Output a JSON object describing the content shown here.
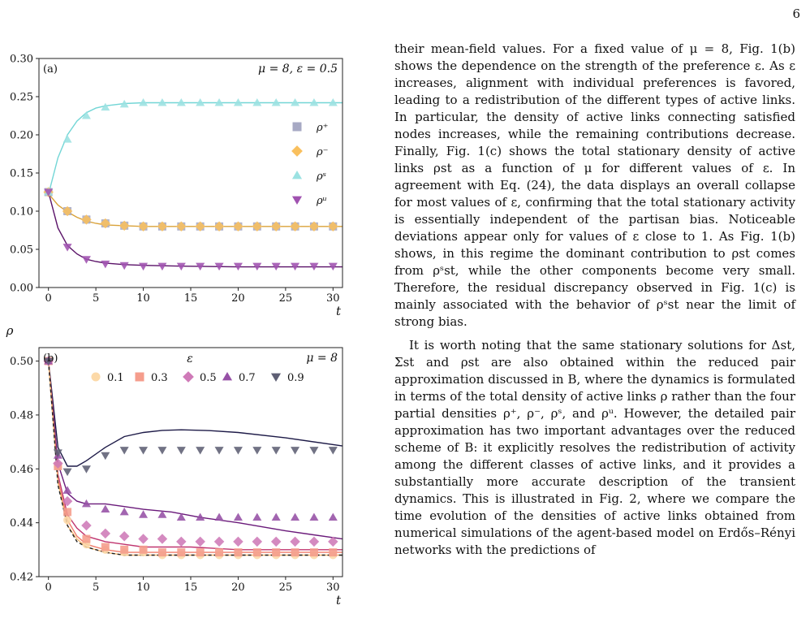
{
  "page": {
    "number": "6"
  },
  "chart_data": [
    {
      "type": "line",
      "panel_label": "(a)",
      "annotation": "μ = 8, ε = 0.5",
      "xlabel": "t",
      "ylabel": "",
      "xlim": [
        -1,
        31
      ],
      "ylim": [
        0.0,
        0.3
      ],
      "xticks": [
        0,
        5,
        10,
        15,
        20,
        25,
        30
      ],
      "yticks": [
        "0.00",
        "0.05",
        "0.10",
        "0.15",
        "0.20",
        "0.25",
        "0.30"
      ],
      "legend_position": "right",
      "grid": false,
      "series": [
        {
          "name": "ρ⁺",
          "color": "#a7a9c4",
          "marker": "square",
          "x": [
            0,
            2,
            4,
            6,
            8,
            10,
            12,
            14,
            16,
            18,
            20,
            22,
            24,
            26,
            28,
            30
          ],
          "y": [
            0.125,
            0.1,
            0.089,
            0.084,
            0.081,
            0.08,
            0.08,
            0.08,
            0.08,
            0.08,
            0.08,
            0.08,
            0.08,
            0.08,
            0.08,
            0.08
          ]
        },
        {
          "name": "ρ⁻",
          "color": "#f9c05e",
          "marker": "diamond",
          "x": [
            0,
            2,
            4,
            6,
            8,
            10,
            12,
            14,
            16,
            18,
            20,
            22,
            24,
            26,
            28,
            30
          ],
          "y": [
            0.125,
            0.1,
            0.089,
            0.084,
            0.081,
            0.08,
            0.08,
            0.08,
            0.08,
            0.08,
            0.08,
            0.08,
            0.08,
            0.08,
            0.08,
            0.08
          ]
        },
        {
          "name": "ρˢ",
          "color": "#9be2e2",
          "marker": "triangle-up",
          "x": [
            0,
            2,
            4,
            6,
            8,
            10,
            12,
            14,
            16,
            18,
            20,
            22,
            24,
            26,
            28,
            30
          ],
          "y": [
            0.125,
            0.194,
            0.225,
            0.236,
            0.24,
            0.242,
            0.242,
            0.242,
            0.242,
            0.242,
            0.242,
            0.242,
            0.242,
            0.242,
            0.242,
            0.242
          ]
        },
        {
          "name": "ρᵘ",
          "color": "#a052b0",
          "marker": "triangle-down",
          "x": [
            0,
            2,
            4,
            6,
            8,
            10,
            12,
            14,
            16,
            18,
            20,
            22,
            24,
            26,
            28,
            30
          ],
          "y": [
            0.125,
            0.053,
            0.037,
            0.031,
            0.029,
            0.028,
            0.028,
            0.028,
            0.028,
            0.028,
            0.028,
            0.028,
            0.028,
            0.028,
            0.028,
            0.028
          ]
        }
      ],
      "fits": [
        {
          "color": "#73d6d6",
          "x": [
            0,
            1,
            2,
            3,
            4,
            5,
            6,
            8,
            10,
            14,
            20,
            31
          ],
          "y": [
            0.122,
            0.17,
            0.2,
            0.218,
            0.229,
            0.235,
            0.238,
            0.241,
            0.242,
            0.242,
            0.242,
            0.242
          ]
        },
        {
          "color": "#d9a23a",
          "x": [
            0,
            1,
            2,
            3,
            4,
            5,
            6,
            8,
            10,
            14,
            20,
            31
          ],
          "y": [
            0.123,
            0.108,
            0.099,
            0.092,
            0.087,
            0.084,
            0.082,
            0.081,
            0.08,
            0.08,
            0.08,
            0.08
          ]
        },
        {
          "color": "#5a1268",
          "x": [
            0,
            1,
            2,
            3,
            4,
            5,
            6,
            8,
            10,
            14,
            20,
            31
          ],
          "y": [
            0.125,
            0.078,
            0.055,
            0.044,
            0.037,
            0.034,
            0.032,
            0.03,
            0.029,
            0.028,
            0.027,
            0.027
          ]
        }
      ]
    },
    {
      "type": "line",
      "panel_label": "(b)",
      "annotation": "μ = 8",
      "legend_title": "ε",
      "ylabel": "ρ",
      "xlabel": "t",
      "xlim": [
        -1,
        31
      ],
      "ylim": [
        0.42,
        0.505
      ],
      "xticks": [
        0,
        5,
        10,
        15,
        20,
        25,
        30
      ],
      "yticks": [
        "0.42",
        "0.44",
        "0.46",
        "0.48",
        "0.50"
      ],
      "legend_position": "top",
      "grid": false,
      "series": [
        {
          "name": "0.1",
          "color": "#fcd9a8",
          "marker": "circle",
          "x": [
            0,
            1,
            2,
            4,
            6,
            8,
            10,
            12,
            14,
            16,
            18,
            20,
            22,
            24,
            26,
            28,
            30
          ],
          "y": [
            0.5,
            0.461,
            0.441,
            0.432,
            0.43,
            0.429,
            0.429,
            0.428,
            0.428,
            0.428,
            0.428,
            0.428,
            0.428,
            0.428,
            0.428,
            0.428,
            0.428
          ]
        },
        {
          "name": "0.3",
          "color": "#f59d8c",
          "marker": "square",
          "x": [
            0,
            1,
            2,
            4,
            6,
            8,
            10,
            12,
            14,
            16,
            18,
            20,
            22,
            24,
            26,
            28,
            30
          ],
          "y": [
            0.5,
            0.461,
            0.444,
            0.434,
            0.431,
            0.43,
            0.43,
            0.429,
            0.429,
            0.429,
            0.429,
            0.429,
            0.429,
            0.429,
            0.429,
            0.429,
            0.429
          ]
        },
        {
          "name": "0.5",
          "color": "#cf7ab8",
          "marker": "diamond",
          "x": [
            0,
            1,
            2,
            4,
            6,
            8,
            10,
            12,
            14,
            16,
            18,
            20,
            22,
            24,
            26,
            28,
            30
          ],
          "y": [
            0.5,
            0.462,
            0.448,
            0.439,
            0.436,
            0.435,
            0.434,
            0.434,
            0.433,
            0.433,
            0.433,
            0.433,
            0.433,
            0.433,
            0.433,
            0.433,
            0.433
          ]
        },
        {
          "name": "0.7",
          "color": "#9650a6",
          "marker": "triangle-up",
          "x": [
            0,
            1,
            2,
            4,
            6,
            8,
            10,
            12,
            14,
            16,
            18,
            20,
            22,
            24,
            26,
            28,
            30
          ],
          "y": [
            0.5,
            0.465,
            0.452,
            0.447,
            0.445,
            0.444,
            0.443,
            0.443,
            0.442,
            0.442,
            0.442,
            0.442,
            0.442,
            0.442,
            0.442,
            0.442,
            0.442
          ]
        },
        {
          "name": "0.9",
          "color": "#5e5f74",
          "marker": "triangle-down",
          "x": [
            0,
            1,
            2,
            4,
            6,
            8,
            10,
            12,
            14,
            16,
            18,
            20,
            22,
            24,
            26,
            28,
            30
          ],
          "y": [
            0.5,
            0.466,
            0.459,
            0.46,
            0.465,
            0.467,
            0.467,
            0.467,
            0.467,
            0.467,
            0.467,
            0.467,
            0.467,
            0.467,
            0.467,
            0.467,
            0.467
          ]
        }
      ],
      "fits": [
        {
          "color": "#1e1b48",
          "x": [
            0,
            1,
            2,
            3,
            4,
            6,
            8,
            10,
            12,
            14,
            17,
            20,
            25,
            31
          ],
          "y": [
            0.5,
            0.468,
            0.461,
            0.461,
            0.463,
            0.468,
            0.472,
            0.4735,
            0.4743,
            0.4745,
            0.4742,
            0.4735,
            0.4715,
            0.4685
          ]
        },
        {
          "color": "#6a1a7a",
          "x": [
            0,
            1,
            2,
            3,
            4,
            6,
            8,
            10,
            13,
            16,
            20,
            25,
            31
          ],
          "y": [
            0.5,
            0.462,
            0.451,
            0.448,
            0.447,
            0.447,
            0.446,
            0.445,
            0.444,
            0.442,
            0.44,
            0.437,
            0.434
          ]
        },
        {
          "color": "#c0356f",
          "x": [
            0,
            1,
            2,
            3,
            4,
            6,
            8,
            10,
            15,
            20,
            31
          ],
          "y": [
            0.5,
            0.458,
            0.443,
            0.438,
            0.435,
            0.433,
            0.432,
            0.431,
            0.431,
            0.43,
            0.43
          ]
        },
        {
          "color": "#f07a68",
          "x": [
            0,
            1,
            2,
            3,
            4,
            6,
            8,
            10,
            15,
            20,
            31
          ],
          "y": [
            0.5,
            0.456,
            0.441,
            0.435,
            0.432,
            0.43,
            0.429,
            0.429,
            0.429,
            0.429,
            0.429
          ]
        },
        {
          "color": "#f5bb74",
          "x": [
            0,
            1,
            2,
            3,
            4,
            6,
            8,
            10,
            15,
            20,
            31
          ],
          "y": [
            0.5,
            0.455,
            0.439,
            0.434,
            0.431,
            0.429,
            0.428,
            0.428,
            0.428,
            0.428,
            0.428
          ]
        },
        {
          "color": "#222222",
          "dashed": true,
          "x": [
            0,
            1,
            2,
            3,
            4,
            6,
            8,
            10,
            15,
            20,
            31
          ],
          "y": [
            0.5,
            0.454,
            0.439,
            0.433,
            0.431,
            0.429,
            0.428,
            0.428,
            0.428,
            0.428,
            0.428
          ]
        }
      ]
    }
  ],
  "text": {
    "paragraphs": [
      "their mean-field values. For a fixed value of μ = 8, Fig. 1(b) shows the dependence on the strength of the preference ε. As ε increases, alignment with individual preferences is favored, leading to a redistribution of the different types of active links. In particular, the density of active links connecting satisfied nodes increases, while the remaining contributions decrease. Finally, Fig. 1(c) shows the total stationary density of active links ρst as a function of μ for different values of ε. In agreement with Eq. (24), the data displays an overall collapse for most values of ε, confirming that the total stationary activity is essentially independent of the partisan bias. Noticeable deviations appear only for values of ε close to 1. As Fig. 1(b) shows, in this regime the dominant contribution to ρst comes from ρˢst, while the other components become very small. Therefore, the residual discrepancy observed in Fig. 1(c) is mainly associated with the behavior of ρˢst near the limit of strong bias.",
      "It is worth noting that the same stationary solutions for Δst, Σst and ρst are also obtained within the reduced pair approximation discussed in B, where the dynamics is formulated in terms of the total density of active links ρ rather than the four partial densities ρ⁺, ρ⁻, ρˢ, and ρᵘ. However, the detailed pair approximation has two important advantages over the reduced scheme of B: it explicitly resolves the redistribution of activity among the different classes of active links, and it provides a substantially more accurate description of the transient dynamics. This is illustrated in Fig. 2, where we compare the time evolution of the densities of active links obtained from numerical simulations of the agent-based model on Erdős–Rényi networks with the predictions of"
    ]
  }
}
